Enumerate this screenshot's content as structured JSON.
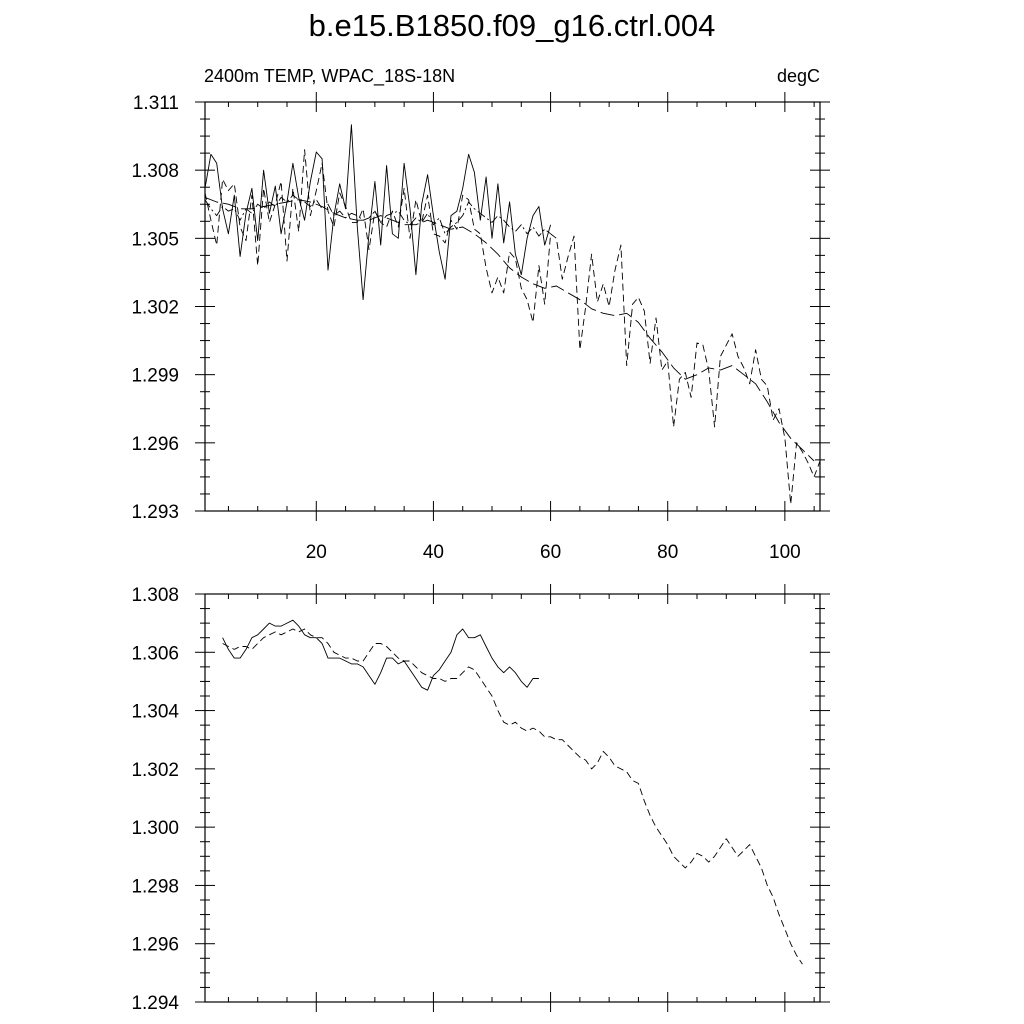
{
  "title": "b.e15.B1850.f09_g16.ctrl.004",
  "chart_data": [
    {
      "type": "line",
      "subtitle_left": "2400m TEMP, WPAC_18S-18N",
      "subtitle_right": "degC",
      "xlim": [
        1,
        106
      ],
      "ylim": [
        1.293,
        1.311
      ],
      "x_ticks": [
        20,
        40,
        60,
        80,
        100
      ],
      "y_ticks": [
        "1.311",
        "1.308",
        "1.305",
        "1.302",
        "1.299",
        "1.296",
        "1.293"
      ],
      "grid": false,
      "series": [
        {
          "style": "solid",
          "x": [
            1,
            2,
            3,
            4,
            5,
            6,
            7,
            8,
            9,
            10,
            11,
            12,
            13,
            14,
            15,
            16,
            17,
            18,
            19,
            20,
            21,
            22,
            23,
            24,
            25,
            26,
            27,
            28,
            29,
            30,
            31,
            32,
            33,
            34,
            35,
            36,
            37,
            38,
            39,
            40,
            41,
            42,
            43,
            44,
            45,
            46,
            47,
            48,
            49,
            50,
            51,
            52,
            53,
            54,
            55,
            56,
            57,
            58,
            59,
            60
          ],
          "values": [
            1.3072,
            1.3087,
            1.3083,
            1.3063,
            1.3052,
            1.3069,
            1.3042,
            1.3061,
            1.3072,
            1.3049,
            1.308,
            1.3061,
            1.3073,
            1.3052,
            1.3066,
            1.3083,
            1.3068,
            1.3058,
            1.3075,
            1.3088,
            1.3085,
            1.3036,
            1.306,
            1.3074,
            1.3063,
            1.31,
            1.3055,
            1.3023,
            1.3052,
            1.3075,
            1.3047,
            1.3082,
            1.3052,
            1.305,
            1.3083,
            1.3063,
            1.3034,
            1.3065,
            1.3078,
            1.306,
            1.3044,
            1.3032,
            1.306,
            1.3062,
            1.3072,
            1.3087,
            1.3079,
            1.3058,
            1.3077,
            1.305,
            1.3074,
            1.3048,
            1.3066,
            1.3043,
            1.3034,
            1.305,
            1.306,
            1.3064,
            1.3047,
            1.3056
          ]
        },
        {
          "style": "dashed",
          "x": [
            1,
            2,
            3,
            4,
            5,
            6,
            7,
            8,
            9,
            10,
            11,
            12,
            13,
            14,
            15,
            16,
            17,
            18,
            19,
            20,
            21,
            22,
            23,
            24,
            25,
            26,
            27,
            28,
            29,
            30,
            31,
            32,
            33,
            34,
            35,
            36,
            37,
            38,
            39,
            40,
            41,
            42,
            43,
            44,
            45,
            46,
            47,
            48,
            49,
            50,
            51,
            52,
            53,
            54,
            55,
            56,
            57,
            58,
            59,
            60,
            61,
            62,
            63,
            64,
            65,
            66,
            67,
            68,
            69,
            70,
            71,
            72,
            73,
            74,
            75,
            76,
            77,
            78,
            79,
            80,
            81,
            82,
            83,
            84,
            85,
            86,
            87,
            88,
            89,
            90,
            91,
            92,
            93,
            94,
            95,
            96,
            97,
            98,
            99,
            100,
            101,
            102,
            103,
            104,
            105,
            106
          ],
          "values": [
            1.307,
            1.3058,
            1.3047,
            1.3076,
            1.3071,
            1.3074,
            1.3055,
            1.3049,
            1.3069,
            1.3038,
            1.3072,
            1.3057,
            1.3065,
            1.3075,
            1.304,
            1.3072,
            1.3053,
            1.3089,
            1.306,
            1.3071,
            1.3083,
            1.3062,
            1.3055,
            1.307,
            1.3064,
            1.3057,
            1.3057,
            1.3063,
            1.3045,
            1.3062,
            1.3057,
            1.3055,
            1.3062,
            1.3055,
            1.3072,
            1.305,
            1.3067,
            1.3057,
            1.3069,
            1.3052,
            1.3051,
            1.3048,
            1.3058,
            1.3054,
            1.3069,
            1.3067,
            1.3054,
            1.3052,
            1.3037,
            1.3026,
            1.3033,
            1.3026,
            1.3044,
            1.3041,
            1.3028,
            1.3023,
            1.3013,
            1.3038,
            1.3021,
            1.3052,
            1.305,
            1.3032,
            1.3042,
            1.3051,
            1.3001,
            1.302,
            1.3043,
            1.3022,
            1.303,
            1.302,
            1.3036,
            1.3047,
            1.2994,
            1.3021,
            1.3024,
            1.3018,
            1.2995,
            1.3015,
            1.2992,
            1.2996,
            1.2967,
            1.2988,
            1.2991,
            1.298,
            1.3004,
            1.3003,
            1.2992,
            1.2967,
            1.2998,
            1.3003,
            1.3008,
            1.2998,
            1.2993,
            1.2986,
            1.3001,
            1.2988,
            1.2985,
            1.297,
            1.2975,
            1.2962,
            1.2933,
            1.296,
            1.2956,
            1.2951,
            1.2945,
            1.2952
          ]
        },
        {
          "style": "dashdot",
          "x": [
            1,
            2,
            3,
            4,
            5,
            6,
            7,
            8,
            9,
            10,
            11,
            12,
            13,
            14,
            15,
            16,
            17,
            18,
            19,
            20,
            21,
            22,
            23,
            24,
            25,
            26,
            27,
            28,
            29,
            30,
            31,
            32,
            33,
            34,
            35,
            36,
            37,
            38,
            39,
            40,
            41,
            42,
            43,
            44,
            45,
            46,
            47,
            48,
            49,
            50,
            51,
            52,
            53,
            54,
            55,
            56,
            57,
            58,
            59,
            60
          ],
          "values": [
            1.3067,
            1.3063,
            1.306,
            1.3064,
            1.3062,
            1.3063,
            1.3058,
            1.3063,
            1.3061,
            1.3065,
            1.3063,
            1.3066,
            1.3064,
            1.3068,
            1.3066,
            1.3069,
            1.3067,
            1.3066,
            1.3064,
            1.3067,
            1.3063,
            1.3065,
            1.306,
            1.3062,
            1.3059,
            1.3061,
            1.306,
            1.3058,
            1.3059,
            1.3062,
            1.3057,
            1.306,
            1.3061,
            1.3062,
            1.3058,
            1.3056,
            1.3059,
            1.3057,
            1.3061,
            1.3056,
            1.3059,
            1.3052,
            1.3055,
            1.3057,
            1.306,
            1.3066,
            1.3063,
            1.3061,
            1.3059,
            1.3057,
            1.306,
            1.3058,
            1.3055,
            1.3053,
            1.3056,
            1.3052,
            1.3055,
            1.3051,
            1.3054,
            1.3052
          ]
        },
        {
          "style": "longdash",
          "x": [
            1,
            3,
            5,
            7,
            9,
            11,
            13,
            15,
            17,
            19,
            21,
            23,
            25,
            27,
            29,
            31,
            33,
            35,
            37,
            39,
            41,
            43,
            45,
            47,
            49,
            51,
            53,
            55,
            57,
            59,
            61,
            63,
            65,
            67,
            69,
            71,
            73,
            75,
            77,
            79,
            81,
            83,
            85,
            87,
            89,
            91,
            93,
            95,
            97,
            99,
            101,
            103,
            105
          ],
          "values": [
            1.3068,
            1.3066,
            1.3065,
            1.3063,
            1.3063,
            1.3064,
            1.3065,
            1.3066,
            1.3067,
            1.3066,
            1.3064,
            1.3061,
            1.3059,
            1.3058,
            1.3058,
            1.306,
            1.3058,
            1.3056,
            1.3056,
            1.3058,
            1.3056,
            1.3054,
            1.3055,
            1.3052,
            1.3048,
            1.3043,
            1.3037,
            1.3033,
            1.303,
            1.3028,
            1.3029,
            1.3026,
            1.3023,
            1.3019,
            1.3017,
            1.3016,
            1.3017,
            1.3013,
            1.3006,
            1.3,
            1.2993,
            1.2988,
            1.299,
            1.2993,
            1.2992,
            1.2994,
            1.299,
            1.2986,
            1.2978,
            1.2969,
            1.2962,
            1.2957,
            1.2952
          ]
        }
      ]
    },
    {
      "type": "line",
      "xlim": [
        1,
        106
      ],
      "ylim": [
        1.294,
        1.308
      ],
      "x_ticks": [
        20,
        40,
        60,
        80,
        100
      ],
      "y_ticks": [
        "1.308",
        "1.306",
        "1.304",
        "1.302",
        "1.300",
        "1.298",
        "1.296",
        "1.294"
      ],
      "grid": false,
      "series": [
        {
          "style": "solid",
          "x": [
            4,
            5,
            6,
            7,
            8,
            9,
            10,
            11,
            12,
            13,
            14,
            15,
            16,
            17,
            18,
            19,
            20,
            21,
            22,
            23,
            24,
            25,
            26,
            27,
            28,
            29,
            30,
            31,
            32,
            33,
            34,
            35,
            36,
            37,
            38,
            39,
            40,
            41,
            42,
            43,
            44,
            45,
            46,
            47,
            48,
            49,
            50,
            51,
            52,
            53,
            54,
            55,
            56,
            57,
            58
          ],
          "values": [
            1.3065,
            1.3061,
            1.3058,
            1.3058,
            1.3061,
            1.3065,
            1.3066,
            1.3068,
            1.307,
            1.3069,
            1.3069,
            1.307,
            1.3071,
            1.3069,
            1.3066,
            1.3065,
            1.3065,
            1.3063,
            1.3058,
            1.3058,
            1.3058,
            1.3057,
            1.3056,
            1.3056,
            1.3055,
            1.3052,
            1.3049,
            1.3053,
            1.3058,
            1.3058,
            1.3056,
            1.3057,
            1.3054,
            1.3051,
            1.3048,
            1.3047,
            1.3052,
            1.3054,
            1.3057,
            1.306,
            1.3066,
            1.3068,
            1.3065,
            1.3065,
            1.3066,
            1.3062,
            1.3058,
            1.3055,
            1.3053,
            1.3055,
            1.3053,
            1.305,
            1.3048,
            1.3051,
            1.3051
          ]
        },
        {
          "style": "dashed",
          "x": [
            4,
            5,
            6,
            7,
            8,
            9,
            10,
            11,
            12,
            13,
            14,
            15,
            16,
            17,
            18,
            19,
            20,
            21,
            22,
            23,
            24,
            25,
            26,
            27,
            28,
            29,
            30,
            31,
            32,
            33,
            34,
            35,
            36,
            37,
            38,
            39,
            40,
            41,
            42,
            43,
            44,
            45,
            46,
            47,
            48,
            49,
            50,
            51,
            52,
            53,
            54,
            55,
            56,
            57,
            58,
            59,
            60,
            61,
            62,
            63,
            64,
            65,
            66,
            67,
            68,
            69,
            70,
            71,
            72,
            73,
            74,
            75,
            76,
            77,
            78,
            79,
            80,
            81,
            82,
            83,
            84,
            85,
            86,
            87,
            88,
            89,
            90,
            91,
            92,
            93,
            94,
            95,
            96,
            97,
            98,
            99,
            100,
            101,
            102,
            103
          ],
          "values": [
            1.3063,
            1.3062,
            1.3061,
            1.3062,
            1.3062,
            1.3061,
            1.3063,
            1.3065,
            1.3066,
            1.3067,
            1.3066,
            1.3067,
            1.3068,
            1.3067,
            1.3068,
            1.3066,
            1.3065,
            1.3065,
            1.3063,
            1.306,
            1.3059,
            1.3058,
            1.3058,
            1.3057,
            1.3057,
            1.306,
            1.3063,
            1.3063,
            1.3062,
            1.306,
            1.3058,
            1.3057,
            1.3057,
            1.3055,
            1.3053,
            1.3052,
            1.3051,
            1.3051,
            1.305,
            1.3051,
            1.3051,
            1.3053,
            1.3055,
            1.3054,
            1.3051,
            1.3048,
            1.3045,
            1.304,
            1.3036,
            1.3035,
            1.3036,
            1.3034,
            1.3033,
            1.3034,
            1.3033,
            1.3031,
            1.3031,
            1.303,
            1.303,
            1.3028,
            1.3026,
            1.3024,
            1.3023,
            1.302,
            1.3022,
            1.3026,
            1.3024,
            1.3021,
            1.302,
            1.3019,
            1.3016,
            1.3015,
            1.3009,
            1.3004,
            1.3,
            1.2997,
            1.2994,
            1.299,
            1.2988,
            1.2986,
            1.2988,
            1.2991,
            1.299,
            1.2988,
            1.299,
            1.2993,
            1.2996,
            1.2993,
            1.299,
            1.2992,
            1.2994,
            1.299,
            1.2986,
            1.298,
            1.2976,
            1.297,
            1.2965,
            1.296,
            1.2956,
            1.2953
          ]
        }
      ]
    }
  ]
}
